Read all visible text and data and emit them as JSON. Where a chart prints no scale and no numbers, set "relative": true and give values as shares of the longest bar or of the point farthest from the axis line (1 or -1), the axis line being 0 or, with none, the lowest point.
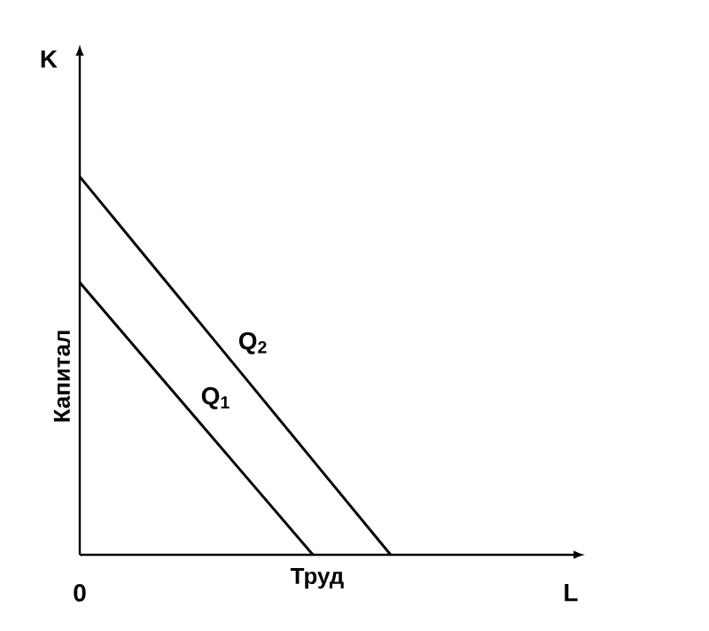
{
  "chart_data": {
    "type": "line",
    "relative": true,
    "xlabel": "Труд",
    "ylabel": "Капитал",
    "annotations": [
      "K",
      "L",
      "0"
    ],
    "categories": [
      null,
      null,
      null,
      null,
      null,
      null,
      null
    ],
    "series": [
      {
        "name": "Q$_{1}$",
        "color": "#000000",
        "values": [
          0.72,
          0.48,
          0.24,
          0,
          null,
          null,
          null
        ]
      },
      {
        "name": "Q$_{2}$",
        "color": "#000000",
        "values": [
          1,
          0.75,
          0.5,
          0.25,
          0,
          null,
          null
        ]
      }
    ],
    "marker": "none",
    "line_style": "solid"
  }
}
